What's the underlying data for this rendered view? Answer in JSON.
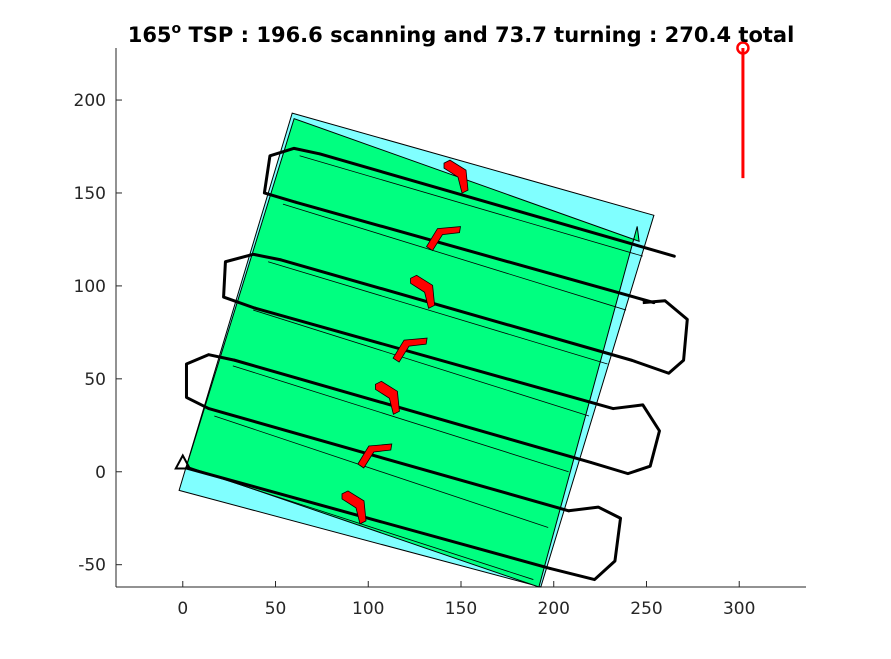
{
  "chart_data": {
    "type": "path-plan",
    "title": "165° TSP : 196.6 scanning and 73.7 turning : 270.4 total",
    "title_parts": {
      "angle": "165",
      "degree_mark": "o",
      "rest": " TSP : 196.6 scanning and 73.7 turning : 270.4 total"
    },
    "xlim": [
      -36,
      336
    ],
    "ylim": [
      -62,
      228
    ],
    "x_ticks": [
      0,
      50,
      100,
      150,
      200,
      250,
      300
    ],
    "y_ticks": [
      -50,
      0,
      50,
      100,
      150,
      200
    ],
    "x_tick_labels": [
      "0",
      "50",
      "100",
      "150",
      "200",
      "250",
      "300"
    ],
    "y_tick_labels": [
      "-50",
      "0",
      "50",
      "100",
      "150",
      "200"
    ],
    "grid": false,
    "colors": {
      "outer_area": "#80ffff",
      "coverage": "#00ff80",
      "path": "#000000",
      "arrow": "#ff0000",
      "wind": "#ff0000"
    },
    "outer_area": [
      [
        -2,
        -10
      ],
      [
        59,
        193
      ],
      [
        254,
        138
      ],
      [
        193,
        -62
      ]
    ],
    "coverage_polygon": [
      [
        2,
        3
      ],
      [
        60,
        190
      ],
      [
        246,
        124
      ],
      [
        245,
        132
      ],
      [
        192,
        -62
      ],
      [
        2,
        3
      ]
    ],
    "strip_left": [
      [
        3,
        2
      ],
      [
        17,
        30
      ],
      [
        27,
        57
      ],
      [
        38,
        87
      ],
      [
        46,
        113
      ],
      [
        54,
        144
      ],
      [
        63,
        170
      ]
    ],
    "strip_right": [
      [
        189,
        -58
      ],
      [
        197,
        -30
      ],
      [
        208,
        0
      ],
      [
        219,
        30
      ],
      [
        229,
        58
      ],
      [
        239,
        87
      ],
      [
        248,
        116
      ]
    ],
    "pass_lines": [
      [
        [
          2,
          2
        ],
        [
          198,
          -52
        ]
      ],
      [
        [
          14,
          34
        ],
        [
          208,
          -21
        ]
      ],
      [
        [
          28,
          60
        ],
        [
          220,
          5
        ]
      ],
      [
        [
          39,
          88
        ],
        [
          232,
          34
        ]
      ],
      [
        [
          53,
          114
        ],
        [
          242,
          60
        ]
      ],
      [
        [
          61,
          145
        ],
        [
          254,
          91
        ]
      ],
      [
        [
          74,
          171
        ],
        [
          265,
          116
        ]
      ]
    ],
    "path_waypoints": [
      [
        2,
        3
      ],
      [
        205,
        -52
      ],
      [
        230,
        -51
      ],
      [
        238,
        -27
      ],
      [
        227,
        -19
      ],
      [
        210,
        -21
      ],
      [
        14,
        34
      ],
      [
        6,
        47
      ],
      [
        10,
        65
      ],
      [
        28,
        60
      ],
      [
        225,
        5
      ],
      [
        252,
        -1
      ],
      [
        260,
        17
      ],
      [
        248,
        36
      ],
      [
        232,
        34
      ],
      [
        39,
        88
      ],
      [
        22,
        94
      ],
      [
        28,
        114
      ],
      [
        53,
        114
      ],
      [
        248,
        60
      ],
      [
        272,
        49
      ],
      [
        276,
        76
      ],
      [
        260,
        92
      ],
      [
        254,
        91
      ],
      [
        61,
        145
      ],
      [
        44,
        150
      ],
      [
        48,
        170
      ],
      [
        74,
        171
      ],
      [
        265,
        116
      ]
    ],
    "direction_arrows": [
      {
        "x": 150,
        "y": 158,
        "heading": "down"
      },
      {
        "x": 140,
        "y": 126,
        "heading": "up"
      },
      {
        "x": 132,
        "y": 96,
        "heading": "down"
      },
      {
        "x": 122,
        "y": 66,
        "heading": "up"
      },
      {
        "x": 113,
        "y": 39,
        "heading": "down"
      },
      {
        "x": 103,
        "y": 9,
        "heading": "up"
      },
      {
        "x": 95,
        "y": -20,
        "heading": "down"
      }
    ],
    "start_marker": {
      "x": 0,
      "y": 5,
      "shape": "triangle"
    },
    "wind_indicator": {
      "x": 302,
      "y_top": 228,
      "y_bottom": 158,
      "marker": "circle"
    }
  }
}
